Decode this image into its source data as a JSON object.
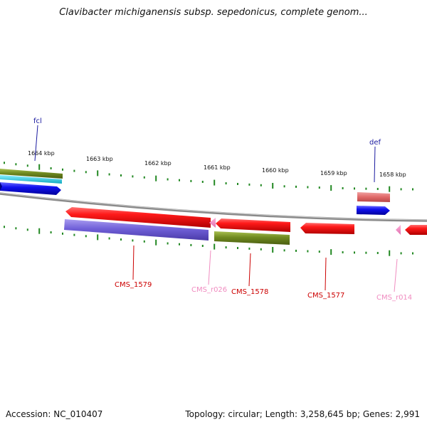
{
  "title": "Clavibacter michiganensis subsp. sepedonicus, complete genom...",
  "footer": {
    "accession": "Accession: NC_010407",
    "summary": "Topology: circular; Length: 3,258,645 bp; Genes: 2,991"
  },
  "ticks": [
    "1664 kbp",
    "1663 kbp",
    "1662 kbp",
    "1661 kbp",
    "1660 kbp",
    "1659 kbp",
    "1658 kbp"
  ],
  "genes": {
    "fcl": "fcl",
    "def": "def",
    "cms1579": "CMS_1579",
    "cmsr026": "CMS_r026",
    "cms1578": "CMS_1578",
    "cms1577": "CMS_1577",
    "cmsr014": "CMS_r014"
  },
  "colors": {
    "red_cds": "#ee1111",
    "pink_rna": "#f08cc0",
    "blue": "#1a1af0",
    "purple": "#7a6ad8",
    "olive": "#708a20",
    "cyan": "#22ccdd",
    "salmon": "#e07070",
    "backbone": "#8a8a8a",
    "tick": "#228822"
  }
}
